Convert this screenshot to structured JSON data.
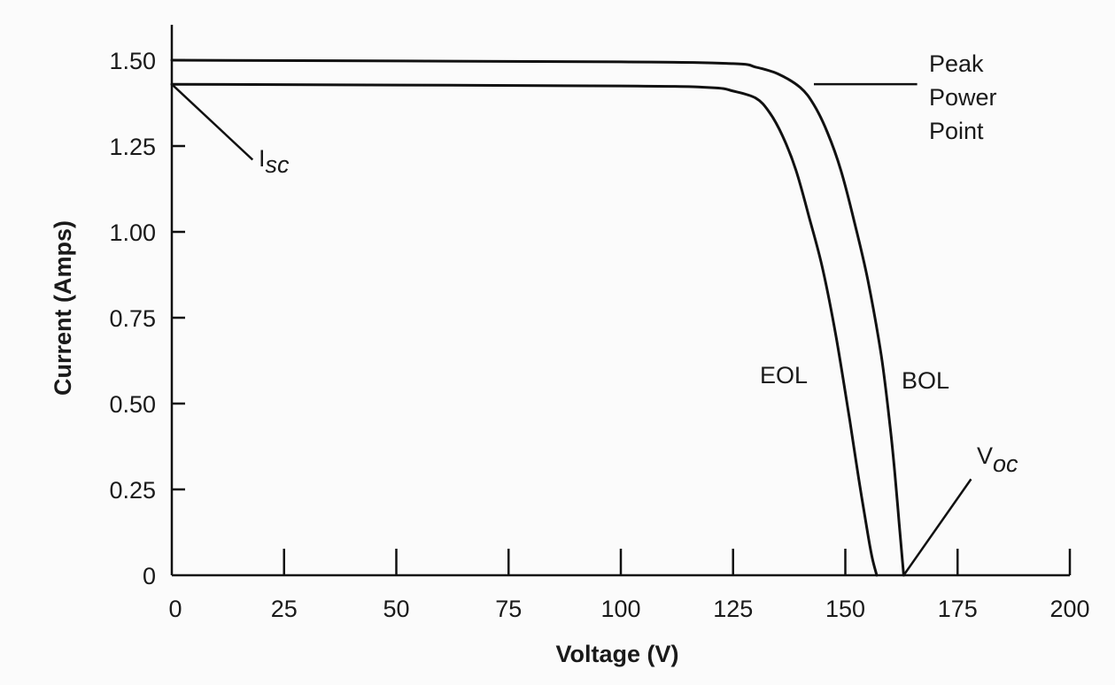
{
  "chart_data": {
    "type": "line",
    "xlabel": "Voltage (V)",
    "ylabel": "Current (Amps)",
    "xlim": [
      0,
      200
    ],
    "ylim": [
      0,
      1.6
    ],
    "x_ticks": [
      "0",
      "25",
      "50",
      "75",
      "100",
      "125",
      "150",
      "175",
      "200"
    ],
    "y_ticks": [
      "0",
      "0.25",
      "0.50",
      "0.75",
      "1.00",
      "1.25",
      "1.50"
    ],
    "grid": false,
    "series": [
      {
        "name": "BOL",
        "x": [
          0,
          100,
          125,
          130,
          135,
          140,
          143,
          146,
          149,
          152,
          155,
          158,
          160,
          161,
          162,
          163
        ],
        "y": [
          1.5,
          1.495,
          1.49,
          1.48,
          1.46,
          1.42,
          1.37,
          1.29,
          1.18,
          1.03,
          0.86,
          0.64,
          0.43,
          0.3,
          0.15,
          0.0
        ]
      },
      {
        "name": "EOL",
        "x": [
          0,
          100,
          120,
          125,
          130,
          133,
          136,
          139,
          142,
          145,
          148,
          151,
          153,
          155,
          156,
          157
        ],
        "y": [
          1.43,
          1.425,
          1.42,
          1.41,
          1.39,
          1.35,
          1.28,
          1.18,
          1.04,
          0.89,
          0.69,
          0.45,
          0.28,
          0.12,
          0.05,
          0.0
        ]
      }
    ],
    "annotations": {
      "peak_line": {
        "x": [
          143,
          166
        ],
        "y": 1.43
      },
      "isc_line": {
        "x": [
          0,
          18
        ],
        "y": [
          1.43,
          1.21
        ]
      },
      "voc_line": {
        "x": [
          163,
          178
        ],
        "y": [
          0.0,
          0.28
        ]
      },
      "peak_label": [
        "Peak",
        "Power",
        "Point"
      ],
      "isc_label": {
        "main": "I",
        "sub": "sc"
      },
      "voc_label": {
        "main": "V",
        "sub": "oc"
      },
      "eol_label": "EOL",
      "bol_label": "BOL"
    }
  }
}
